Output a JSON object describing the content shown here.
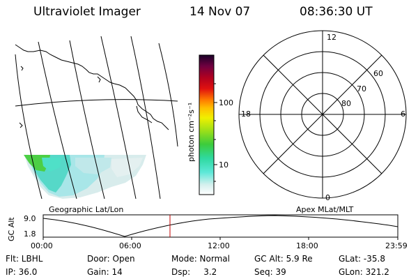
{
  "header": {
    "title": "Ultraviolet Imager",
    "date": "14 Nov 07",
    "time": "08:36:30 UT"
  },
  "colorbar": {
    "unit_label": "photon cm⁻²s⁻¹",
    "ticks": [
      "100",
      "10"
    ]
  },
  "polar": {
    "mlt_labels": [
      "12",
      "18",
      "6",
      "0"
    ],
    "lat_labels": [
      "60",
      "70",
      "80"
    ]
  },
  "timeline": {
    "left_title": "Geographic Lat/Lon",
    "right_title": "Apex MLat/MLT",
    "axis_label": "GC Alt",
    "y_ticks": [
      "9.0",
      "1.8"
    ],
    "x_ticks": [
      "00:00",
      "06:00",
      "12:00",
      "18:00",
      "23:59"
    ],
    "current_marker": "08:36:30"
  },
  "footer": {
    "row1": [
      "Flt: LBHL",
      "Door: Open",
      "Mode: Normal",
      "GC Alt: 5.9 Re",
      "GLat: -35.8"
    ],
    "row2": [
      "IP: 36.0",
      "Gain: 14",
      "Dsp:     3.2",
      "Seq: 39",
      "GLon: 321.2"
    ]
  },
  "colors": {
    "marker": "#c00000",
    "image_green": "#4ccf45",
    "image_cyan": "#7fe8e0",
    "image_pale": "#d8ecec"
  }
}
